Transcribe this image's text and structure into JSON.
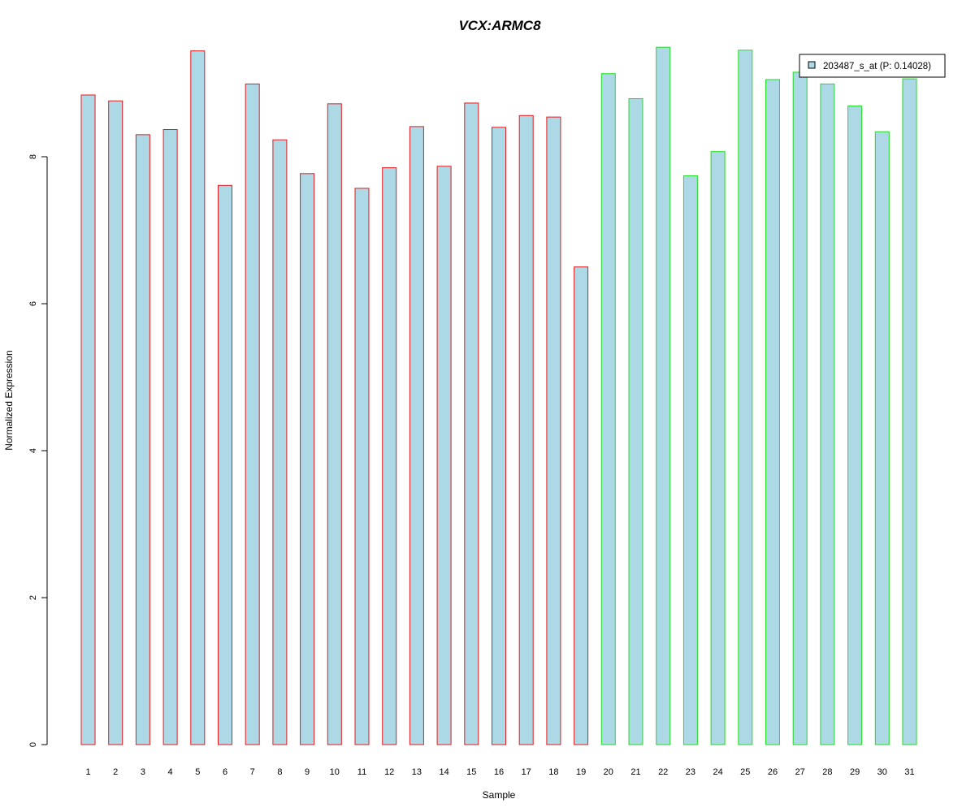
{
  "chart_data": {
    "type": "bar",
    "title": "VCX:ARMC8",
    "xlabel": "Sample",
    "ylabel": "Normalized Expression",
    "categories": [
      "1",
      "2",
      "3",
      "4",
      "5",
      "6",
      "7",
      "8",
      "9",
      "10",
      "11",
      "12",
      "13",
      "14",
      "15",
      "16",
      "17",
      "18",
      "19",
      "20",
      "21",
      "22",
      "23",
      "24",
      "25",
      "26",
      "27",
      "28",
      "29",
      "30",
      "31"
    ],
    "series": [
      {
        "name": "203487_s_at (P: 0.14028)",
        "values": [
          8.84,
          8.76,
          8.3,
          8.37,
          9.44,
          7.61,
          8.99,
          8.23,
          7.77,
          8.72,
          7.57,
          7.85,
          8.41,
          7.87,
          8.73,
          8.4,
          8.56,
          8.54,
          6.5,
          9.13,
          8.79,
          9.49,
          7.74,
          8.07,
          9.45,
          9.05,
          9.15,
          8.99,
          8.69,
          8.34,
          9.06
        ]
      }
    ],
    "group_edge_colors": [
      "#e41a1c",
      "#e41a1c",
      "#e41a1c",
      "#e41a1c",
      "#e41a1c",
      "#e41a1c",
      "#e41a1c",
      "#e41a1c",
      "#e41a1c",
      "#e41a1c",
      "#e41a1c",
      "#e41a1c",
      "#e41a1c",
      "#e41a1c",
      "#e41a1c",
      "#e41a1c",
      "#e41a1c",
      "#e41a1c",
      "#e41a1c",
      "#22dd22",
      "#22dd22",
      "#22dd22",
      "#22dd22",
      "#22dd22",
      "#22dd22",
      "#22dd22",
      "#22dd22",
      "#22dd22",
      "#22dd22",
      "#22dd22",
      "#22dd22"
    ],
    "bar_fill": "#add8e6",
    "title_color": "#0000cc",
    "yticks": [
      0,
      2,
      4,
      6,
      8
    ],
    "ylim": [
      0,
      9.5
    ],
    "grid": false,
    "legend_position": "top-right"
  }
}
